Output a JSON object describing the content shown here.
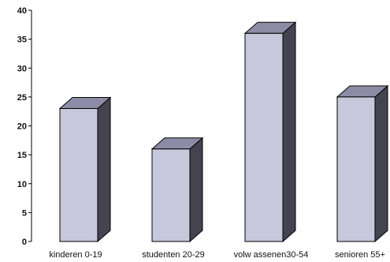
{
  "chart_data": {
    "type": "bar",
    "style": "3d",
    "categories": [
      "kinderen 0-19",
      "studenten 20-29",
      "volw assenen30-54",
      "senioren 55+"
    ],
    "values": [
      23,
      16,
      36,
      25
    ],
    "ylim": [
      0,
      40
    ],
    "yticks": [
      "0",
      "5",
      "10",
      "15",
      "20",
      "25",
      "30",
      "35",
      "40"
    ],
    "title": "",
    "xlabel": "",
    "ylabel": "",
    "grid": false,
    "legend": "none",
    "colors": {
      "bar_front": "#c8c8dc",
      "bar_top": "#8c8ca6",
      "bar_side": "#444450",
      "axis": "#000000"
    }
  }
}
